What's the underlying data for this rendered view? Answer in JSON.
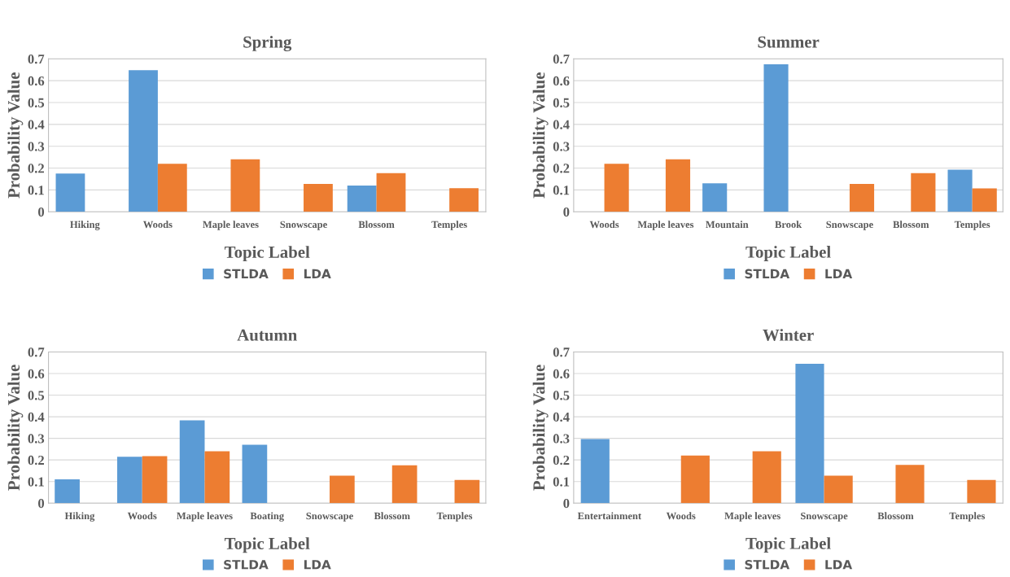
{
  "chart_data": [
    {
      "type": "bar",
      "title": "Spring",
      "xlabel": "Topic Label",
      "ylabel": "Probability Value",
      "categories": [
        "Hiking",
        "Woods",
        "Maple leaves",
        "Snowscape",
        "Blossom",
        "Temples"
      ],
      "series": [
        {
          "name": "STLDA",
          "color": "#5b9bd5",
          "values": [
            0.175,
            0.648,
            null,
            null,
            0.12,
            null
          ]
        },
        {
          "name": "LDA",
          "color": "#ed7d31",
          "values": [
            null,
            0.22,
            0.24,
            0.127,
            0.177,
            0.108
          ]
        }
      ],
      "ylim": [
        0,
        0.7
      ],
      "yticks": [
        0,
        0.1,
        0.2,
        0.3,
        0.4,
        0.5,
        0.6,
        0.7
      ],
      "grid": "y",
      "legend": "bottom"
    },
    {
      "type": "bar",
      "title": "Summer",
      "xlabel": "Topic Label",
      "ylabel": "Probability Value",
      "categories": [
        "Woods",
        "Maple leaves",
        "Mountain",
        "Brook",
        "Snowscape",
        "Blossom",
        "Temples"
      ],
      "series": [
        {
          "name": "STLDA",
          "color": "#5b9bd5",
          "values": [
            null,
            null,
            0.13,
            0.675,
            null,
            null,
            0.193
          ]
        },
        {
          "name": "LDA",
          "color": "#ed7d31",
          "values": [
            0.22,
            0.24,
            null,
            null,
            0.127,
            0.177,
            0.107
          ]
        }
      ],
      "ylim": [
        0,
        0.7
      ],
      "yticks": [
        0,
        0.1,
        0.2,
        0.3,
        0.4,
        0.5,
        0.6,
        0.7
      ],
      "grid": "y",
      "legend": "bottom"
    },
    {
      "type": "bar",
      "title": "Autumn",
      "xlabel": "Topic Label",
      "ylabel": "Probability Value",
      "categories": [
        "Hiking",
        "Woods",
        "Maple leaves",
        "Boating",
        "Snowscape",
        "Blossom",
        "Temples"
      ],
      "series": [
        {
          "name": "STLDA",
          "color": "#5b9bd5",
          "values": [
            0.11,
            0.215,
            0.383,
            0.27,
            null,
            null,
            null
          ]
        },
        {
          "name": "LDA",
          "color": "#ed7d31",
          "values": [
            null,
            0.218,
            0.24,
            null,
            0.127,
            0.175,
            0.107
          ]
        }
      ],
      "ylim": [
        0,
        0.7
      ],
      "yticks": [
        0,
        0.1,
        0.2,
        0.3,
        0.4,
        0.5,
        0.6,
        0.7
      ],
      "grid": "y",
      "legend": "bottom"
    },
    {
      "type": "bar",
      "title": "Winter",
      "xlabel": "Topic Label",
      "ylabel": "Probability Value",
      "categories": [
        "Entertainment",
        "Woods",
        "Maple leaves",
        "Snowscape",
        "Blossom",
        "Temples"
      ],
      "series": [
        {
          "name": "STLDA",
          "color": "#5b9bd5",
          "values": [
            0.297,
            null,
            null,
            0.645,
            null,
            null
          ]
        },
        {
          "name": "LDA",
          "color": "#ed7d31",
          "values": [
            null,
            0.22,
            0.24,
            0.127,
            0.177,
            0.107
          ]
        }
      ],
      "ylim": [
        0,
        0.7
      ],
      "yticks": [
        0,
        0.1,
        0.2,
        0.3,
        0.4,
        0.5,
        0.6,
        0.7
      ],
      "grid": "y",
      "legend": "bottom"
    }
  ]
}
